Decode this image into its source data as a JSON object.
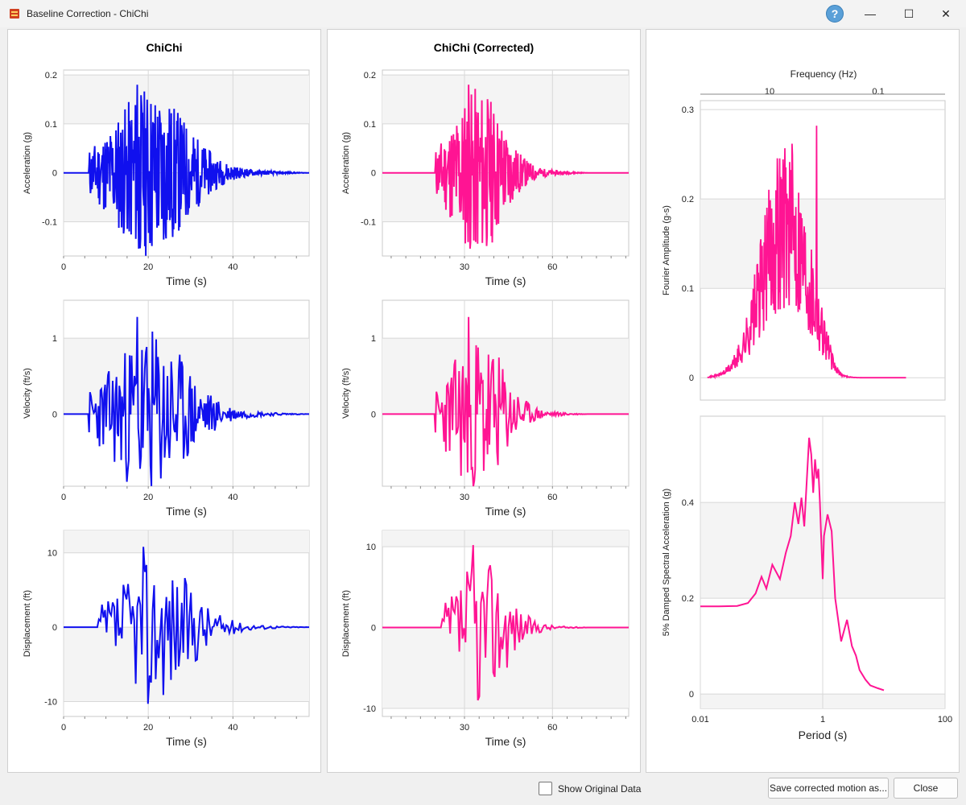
{
  "window": {
    "title": "Baseline Correction - ChiChi",
    "help_glyph": "?",
    "minimize_glyph": "—",
    "maximize_glyph": "☐",
    "close_glyph": "✕"
  },
  "left_panel": {
    "title": "ChiChi"
  },
  "middle_panel": {
    "title": "ChiChi (Corrected)"
  },
  "footer": {
    "show_original_label": "Show Original Data",
    "show_original_checked": false,
    "save_label": "Save corrected motion as...",
    "close_label": "Close"
  },
  "colors": {
    "original": "#1010ee",
    "corrected": "#ff1493",
    "band": "#f4f4f4",
    "grid": "#d8d8d8"
  },
  "chart_data": [
    {
      "id": "orig_acc",
      "type": "line",
      "ylabel": "Acceleration (g)",
      "xlabel": "Time (s)",
      "xticks": [
        "0",
        "20",
        "40"
      ],
      "yticks": [
        "0.2",
        "0.1",
        "0",
        "-0.1"
      ],
      "xlim": [
        0,
        58
      ],
      "ylim": [
        -0.17,
        0.21
      ],
      "series": [
        {
          "color": "#1010ee",
          "peak": 0.18,
          "trough": -0.155,
          "start": 6,
          "end": 58
        }
      ]
    },
    {
      "id": "orig_vel",
      "type": "line",
      "ylabel": "Velocity (ft/s)",
      "xlabel": "Time (s)",
      "xticks": [
        "0",
        "20",
        "40"
      ],
      "yticks": [
        "1",
        "0"
      ],
      "xlim": [
        0,
        58
      ],
      "ylim": [
        -0.95,
        1.5
      ],
      "series": [
        {
          "color": "#1010ee",
          "peak": 1.28,
          "trough": -0.72,
          "start": 6,
          "end": 58
        }
      ]
    },
    {
      "id": "orig_disp",
      "type": "line",
      "ylabel": "Displacement (ft)",
      "xlabel": "Time (s)",
      "xticks": [
        "0",
        "20",
        "40"
      ],
      "yticks": [
        "10",
        "0",
        "-10"
      ],
      "xlim": [
        0,
        58
      ],
      "ylim": [
        -12,
        13
      ],
      "series": [
        {
          "color": "#1010ee",
          "peak": 10.8,
          "trough": -10.3,
          "start": 8,
          "end": 58
        }
      ]
    },
    {
      "id": "corr_acc",
      "type": "line",
      "ylabel": "Acceleration (g)",
      "xlabel": "Time (s)",
      "xticks": [
        "30",
        "60"
      ],
      "yticks": [
        "0.2",
        "0.1",
        "0",
        "-0.1"
      ],
      "xlim": [
        2,
        86
      ],
      "ylim": [
        -0.17,
        0.21
      ],
      "series": [
        {
          "color": "#ff1493",
          "peak": 0.18,
          "trough": -0.155,
          "start": 20,
          "end": 72
        }
      ]
    },
    {
      "id": "corr_vel",
      "type": "line",
      "ylabel": "Velocity (ft/s)",
      "xlabel": "Time (s)",
      "xticks": [
        "30",
        "60"
      ],
      "yticks": [
        "1",
        "0"
      ],
      "xlim": [
        2,
        86
      ],
      "ylim": [
        -0.95,
        1.5
      ],
      "series": [
        {
          "color": "#ff1493",
          "peak": 1.28,
          "trough": -0.72,
          "start": 20,
          "end": 72
        }
      ]
    },
    {
      "id": "corr_disp",
      "type": "line",
      "ylabel": "Displacement (ft)",
      "xlabel": "Time (s)",
      "xticks": [
        "30",
        "60"
      ],
      "yticks": [
        "10",
        "0",
        "-10"
      ],
      "xlim": [
        2,
        86
      ],
      "ylim": [
        -11,
        12
      ],
      "series": [
        {
          "color": "#ff1493",
          "peak": 10.2,
          "trough": -9.0,
          "start": 22,
          "end": 72
        }
      ]
    },
    {
      "id": "fourier",
      "type": "line",
      "ylabel": "Fourier Amplitude (g-s)",
      "top_xlabel": "Frequency (Hz)",
      "top_xticks": [
        "10",
        "0.1"
      ],
      "yticks": [
        "0.3",
        "0.2",
        "0.1",
        "0"
      ],
      "xlim_period_log": [
        0.01,
        100
      ],
      "ylim": [
        -0.025,
        0.31
      ],
      "series": [
        {
          "color": "#ff1493",
          "peak": 0.282,
          "x_range_period": [
            0.013,
            23
          ]
        }
      ]
    },
    {
      "id": "spectrum",
      "type": "line",
      "ylabel": "5% Damped Spectral Acceleration (g)",
      "xlabel": "Period (s)",
      "xticks": [
        "0.01",
        "1",
        "100"
      ],
      "yticks": [
        "0.4",
        "0.2",
        "0"
      ],
      "xscale": "log",
      "xlim": [
        0.01,
        100
      ],
      "ylim": [
        -0.03,
        0.58
      ],
      "series": [
        {
          "color": "#ff1493",
          "x": [
            0.01,
            0.02,
            0.04,
            0.06,
            0.08,
            0.1,
            0.12,
            0.15,
            0.2,
            0.25,
            0.3,
            0.35,
            0.4,
            0.45,
            0.5,
            0.6,
            0.65,
            0.7,
            0.75,
            0.8,
            0.85,
            0.9,
            1.0,
            1.05,
            1.2,
            1.4,
            1.6,
            2.0,
            2.5,
            3.0,
            3.5,
            4.0,
            5.0,
            6.0,
            8.0,
            10.0
          ],
          "y": [
            0.183,
            0.183,
            0.184,
            0.19,
            0.21,
            0.245,
            0.22,
            0.27,
            0.24,
            0.295,
            0.33,
            0.4,
            0.355,
            0.41,
            0.35,
            0.535,
            0.5,
            0.42,
            0.49,
            0.45,
            0.47,
            0.4,
            0.24,
            0.33,
            0.375,
            0.34,
            0.2,
            0.11,
            0.155,
            0.1,
            0.08,
            0.05,
            0.03,
            0.018,
            0.012,
            0.008
          ]
        }
      ]
    }
  ]
}
